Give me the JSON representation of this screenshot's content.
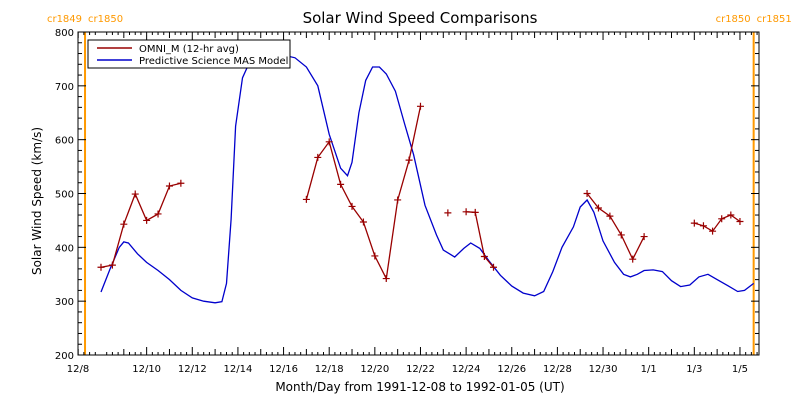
{
  "chart_data": {
    "type": "line",
    "title": "Solar Wind Speed Comparisons",
    "xlabel": "Month/Day from 1991-12-08 to 1992-01-05 (UT)",
    "ylabel": "Solar Wind Speed (km/s)",
    "ylim": [
      200,
      800
    ],
    "xlim": [
      0,
      28
    ],
    "yticks": [
      200,
      300,
      400,
      500,
      600,
      700,
      800
    ],
    "xticks": [
      {
        "x": 0,
        "label": "12/8"
      },
      {
        "x": 2,
        "label": "12/10"
      },
      {
        "x": 4,
        "label": "12/12"
      },
      {
        "x": 6,
        "label": "12/14"
      },
      {
        "x": 8,
        "label": "12/16"
      },
      {
        "x": 10,
        "label": "12/18"
      },
      {
        "x": 12,
        "label": "12/20"
      },
      {
        "x": 14,
        "label": "12/22"
      },
      {
        "x": 16,
        "label": "12/24"
      },
      {
        "x": 18,
        "label": "12/26"
      },
      {
        "x": 20,
        "label": "12/28"
      },
      {
        "x": 22,
        "label": "12/30"
      },
      {
        "x": 24,
        "label": "1/1"
      },
      {
        "x": 26,
        "label": "1/3"
      },
      {
        "x": 28,
        "label": "1/5"
      }
    ],
    "legend_position": "top-left",
    "series": [
      {
        "name": "OMNI_M (12-hr avg)",
        "color": "#990000",
        "marker": "plus",
        "segments": [
          [
            [
              0.0,
              363
            ],
            [
              0.5,
              367
            ],
            [
              1.0,
              443
            ],
            [
              1.5,
              499
            ],
            [
              2.0,
              450
            ],
            [
              2.5,
              462
            ],
            [
              3.0,
              514
            ],
            [
              3.5,
              519
            ]
          ],
          [
            [
              9.0,
              489
            ],
            [
              9.5,
              567
            ],
            [
              10.0,
              596
            ],
            [
              10.5,
              517
            ],
            [
              11.0,
              476
            ],
            [
              11.5,
              447
            ],
            [
              12.0,
              384
            ],
            [
              12.5,
              342
            ],
            [
              13.0,
              488
            ],
            [
              13.5,
              562
            ],
            [
              14.0,
              662
            ]
          ],
          [
            [
              15.2,
              464
            ]
          ],
          [
            [
              16.0,
              466
            ],
            [
              16.4,
              465
            ],
            [
              16.8,
              383
            ],
            [
              17.2,
              363
            ]
          ],
          [
            [
              21.3,
              500
            ],
            [
              21.8,
              473
            ],
            [
              22.3,
              458
            ],
            [
              22.8,
              423
            ],
            [
              23.3,
              378
            ],
            [
              23.8,
              420
            ]
          ],
          [
            [
              26.0,
              445
            ],
            [
              26.4,
              440
            ],
            [
              26.8,
              430
            ],
            [
              27.2,
              453
            ],
            [
              27.6,
              460
            ],
            [
              28.0,
              448
            ]
          ]
        ]
      },
      {
        "name": "Predictive Science MAS Model",
        "color": "#0000cc",
        "marker": "none",
        "points": [
          [
            0.0,
            317
          ],
          [
            0.4,
            360
          ],
          [
            0.8,
            400
          ],
          [
            1.0,
            410
          ],
          [
            1.2,
            408
          ],
          [
            1.6,
            388
          ],
          [
            2.0,
            372
          ],
          [
            2.5,
            357
          ],
          [
            3.0,
            340
          ],
          [
            3.5,
            320
          ],
          [
            4.0,
            306
          ],
          [
            4.5,
            300
          ],
          [
            5.0,
            297
          ],
          [
            5.3,
            299
          ],
          [
            5.5,
            333
          ],
          [
            5.7,
            452
          ],
          [
            5.9,
            625
          ],
          [
            6.2,
            715
          ],
          [
            6.5,
            743
          ],
          [
            7.0,
            752
          ],
          [
            7.5,
            757
          ],
          [
            8.0,
            757
          ],
          [
            8.5,
            752
          ],
          [
            9.0,
            735
          ],
          [
            9.5,
            700
          ],
          [
            10.0,
            610
          ],
          [
            10.5,
            547
          ],
          [
            10.8,
            533
          ],
          [
            11.0,
            558
          ],
          [
            11.3,
            650
          ],
          [
            11.6,
            710
          ],
          [
            11.9,
            735
          ],
          [
            12.2,
            735
          ],
          [
            12.5,
            722
          ],
          [
            12.9,
            690
          ],
          [
            13.3,
            630
          ],
          [
            13.7,
            572
          ],
          [
            14.2,
            478
          ],
          [
            14.7,
            423
          ],
          [
            15.0,
            395
          ],
          [
            15.5,
            382
          ],
          [
            15.9,
            398
          ],
          [
            16.2,
            408
          ],
          [
            16.6,
            398
          ],
          [
            17.0,
            375
          ],
          [
            17.5,
            348
          ],
          [
            18.0,
            328
          ],
          [
            18.5,
            315
          ],
          [
            19.0,
            310
          ],
          [
            19.4,
            318
          ],
          [
            19.8,
            355
          ],
          [
            20.2,
            400
          ],
          [
            20.7,
            438
          ],
          [
            21.0,
            475
          ],
          [
            21.3,
            488
          ],
          [
            21.6,
            465
          ],
          [
            22.0,
            412
          ],
          [
            22.5,
            372
          ],
          [
            22.9,
            350
          ],
          [
            23.2,
            345
          ],
          [
            23.5,
            350
          ],
          [
            23.8,
            357
          ],
          [
            24.2,
            358
          ],
          [
            24.6,
            355
          ],
          [
            25.0,
            338
          ],
          [
            25.4,
            327
          ],
          [
            25.8,
            330
          ],
          [
            26.2,
            345
          ],
          [
            26.6,
            350
          ],
          [
            27.0,
            340
          ],
          [
            27.5,
            328
          ],
          [
            27.9,
            318
          ],
          [
            28.2,
            320
          ],
          [
            28.6,
            333
          ]
        ]
      }
    ],
    "carrington_markers": [
      {
        "x": -0.7,
        "left_label": "cr1849",
        "right_label": "cr1850"
      },
      {
        "x": 28.6,
        "left_label": "cr1850",
        "right_label": "cr1851"
      }
    ],
    "marker_color": "#ff9900"
  }
}
